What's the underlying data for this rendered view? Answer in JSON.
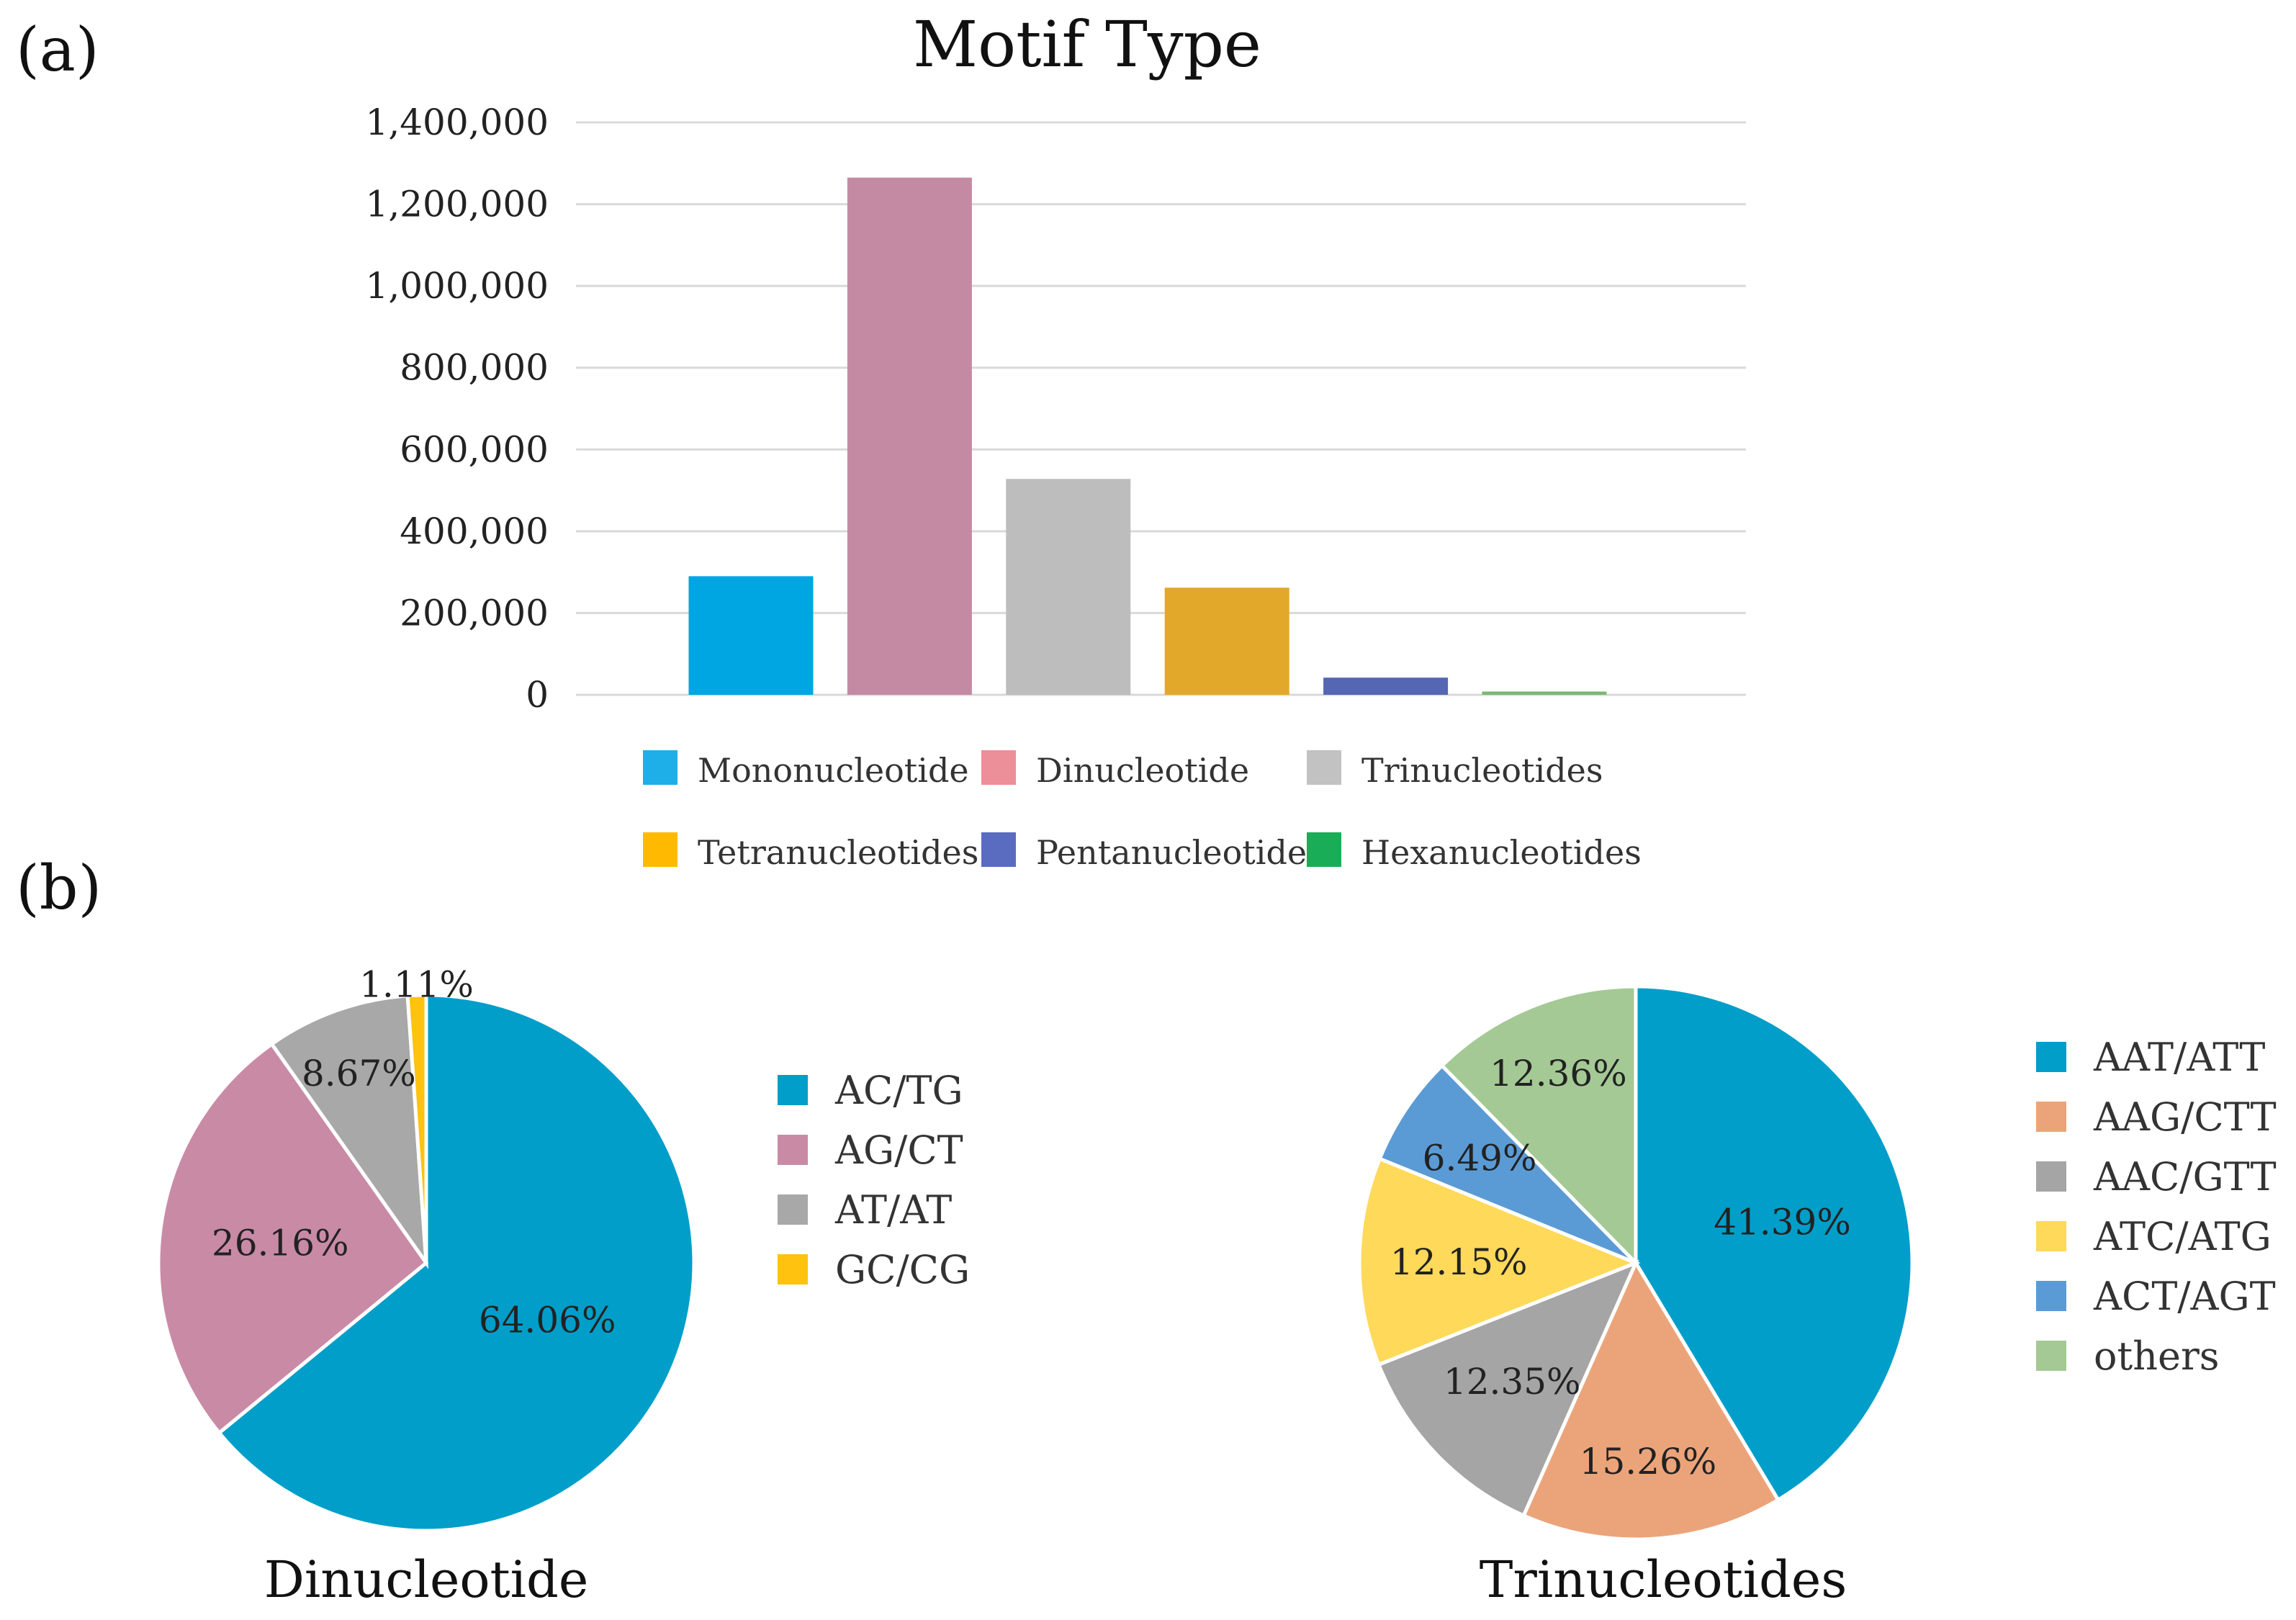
{
  "figure": {
    "label_a": "(a)",
    "label_b": "(b)"
  },
  "chart_data": [
    {
      "type": "bar",
      "title": "Motif Type",
      "xlabel": "",
      "ylabel": "",
      "categories": [
        "Mononucleotide",
        "Dinucleotide",
        "Trinucleotides",
        "Tetranucleotides",
        "Pentanucleotides",
        "Hexanucleotides"
      ],
      "values": [
        290000,
        1265000,
        528000,
        262000,
        42000,
        8000
      ],
      "colors": [
        "#00a6e2",
        "#c48aa4",
        "#bdbdbd",
        "#e2a82a",
        "#5566b3",
        "#7cb873"
      ],
      "legend_colors": [
        "#1eaee8",
        "#ec8f98",
        "#c2c2c2",
        "#ffba00",
        "#5a6cc0",
        "#1aad57"
      ],
      "ylim": [
        0,
        1400000
      ],
      "yticks": [
        0,
        200000,
        400000,
        600000,
        800000,
        1000000,
        1200000,
        1400000
      ],
      "ytick_labels": [
        "0",
        "200,000",
        "400,000",
        "600,000",
        "800,000",
        "1,000,000",
        "1,200,000",
        "1,400,000"
      ],
      "grid": true,
      "legend_position": "bottom"
    },
    {
      "type": "pie",
      "title": "Dinucleotide",
      "labels": [
        "AC/TG",
        "AG/CT",
        "AT/AT",
        "GC/CG"
      ],
      "values": [
        64.06,
        26.16,
        8.67,
        1.11
      ],
      "value_labels": [
        "64.06%",
        "26.16%",
        "8.67%",
        "1.11%"
      ],
      "colors": [
        "#009ec9",
        "#c98aa6",
        "#a8a8a8",
        "#ffc20e"
      ],
      "legend_position": "right"
    },
    {
      "type": "pie",
      "title": "Trinucleotides",
      "labels": [
        "AAT/ATT",
        "AAG/CTT",
        "AAC/GTT",
        "ATC/ATG",
        "ACT/AGT",
        "others"
      ],
      "values": [
        41.39,
        15.26,
        12.35,
        12.15,
        6.49,
        12.36
      ],
      "value_labels": [
        "41.39%",
        "15.26%",
        "12.35%",
        "12.15%",
        "6.49%",
        "12.36%"
      ],
      "colors": [
        "#009ec9",
        "#eba47a",
        "#a5a5a5",
        "#ffd95a",
        "#5b9bd5",
        "#a4c995"
      ],
      "legend_position": "right"
    }
  ]
}
